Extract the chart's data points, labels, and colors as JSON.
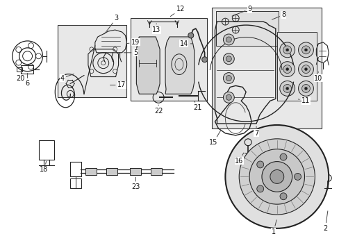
{
  "bg_color": "#ffffff",
  "line_color": "#222222",
  "box_fill": "#e8e8e8",
  "box_edge": "#333333",
  "figsize": [
    4.89,
    3.6
  ],
  "dpi": 100
}
